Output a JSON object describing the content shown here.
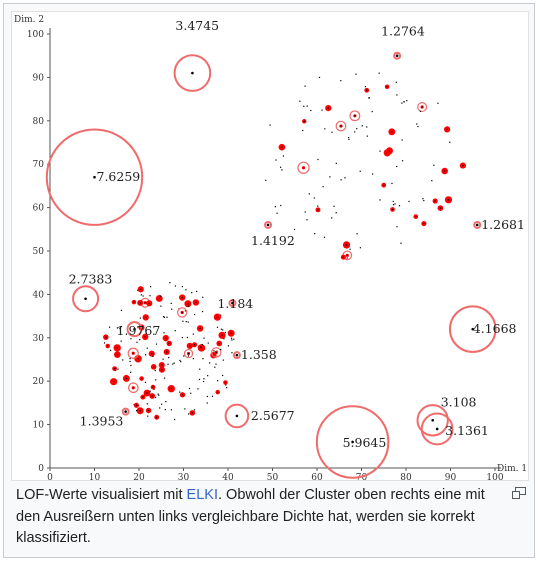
{
  "caption": {
    "before_link": "LOF-Werte visualisiert mit ",
    "link_text": "ELKI",
    "after_link": ". Obwohl der Cluster oben rechts eine mit den Ausreißern unten links vergleichbare Dichte hat, werden sie korrekt klassifiziert."
  },
  "icons": {
    "enlarge": "enlarge-icon"
  },
  "colors": {
    "point": "#000000",
    "score": "#ff0000",
    "circle": "#f06b6b",
    "link": "#3366cc"
  },
  "chart_data": {
    "type": "scatter",
    "xlabel": "Dim. 1",
    "ylabel": "Dim. 2",
    "xlim": [
      0,
      100
    ],
    "ylim": [
      0,
      100
    ],
    "xticks": [
      0,
      10,
      20,
      30,
      40,
      50,
      60,
      70,
      80,
      90,
      100
    ],
    "yticks": [
      0,
      10,
      20,
      30,
      40,
      50,
      60,
      70,
      80,
      90,
      100
    ],
    "grid": false,
    "outliers": [
      {
        "x": 32,
        "y": 91,
        "lof": "3.4745"
      },
      {
        "x": 10,
        "y": 67,
        "lof": "7.6259"
      },
      {
        "x": 78,
        "y": 95,
        "lof": "1.2764"
      },
      {
        "x": 96,
        "y": 56,
        "lof": "1.2681"
      },
      {
        "x": 49,
        "y": 56,
        "lof": "1.4192"
      },
      {
        "x": 8,
        "y": 39,
        "lof": "2.7383"
      },
      {
        "x": 41,
        "y": 38,
        "lof": "1.184"
      },
      {
        "x": 19,
        "y": 32,
        "lof": "1.9767"
      },
      {
        "x": 95,
        "y": 32,
        "lof": "4.1668"
      },
      {
        "x": 42,
        "y": 26,
        "lof": "1.358"
      },
      {
        "x": 42,
        "y": 12,
        "lof": "2.5677"
      },
      {
        "x": 17,
        "y": 13,
        "lof": "1.3953"
      },
      {
        "x": 86,
        "y": 11,
        "lof": "3.108"
      },
      {
        "x": 87,
        "y": 9,
        "lof": "3.1361"
      },
      {
        "x": 68,
        "y": 6,
        "lof": "5.9645"
      }
    ],
    "clusters": [
      {
        "cx": 70,
        "cy": 70,
        "rx": 23,
        "ry": 22,
        "n": 110
      },
      {
        "cx": 27,
        "cy": 27,
        "rx": 15,
        "ry": 16,
        "n": 190
      }
    ]
  }
}
